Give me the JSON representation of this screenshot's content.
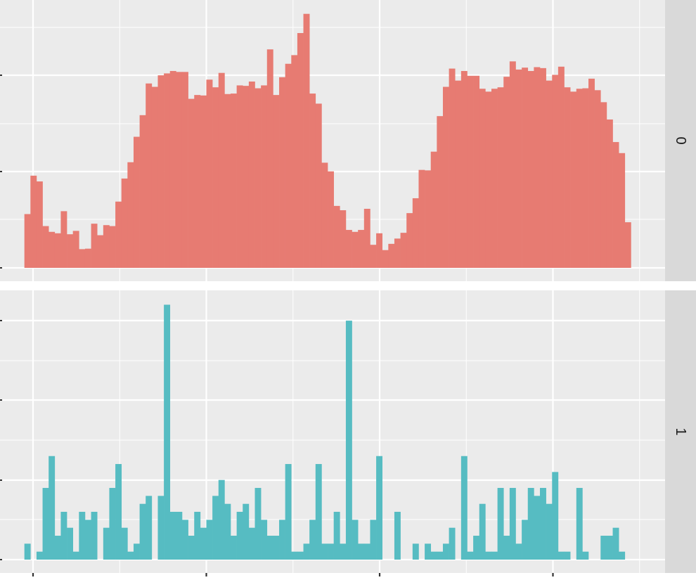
{
  "chart_data": {
    "type": "histogram-facets",
    "x_range": [
      -0.5,
      34.5
    ],
    "bin_count": 100,
    "grid": true,
    "colors": {
      "panel_bg": "#ebebeb",
      "grid": "#ffffff",
      "strip_bg": "#d9d9d9",
      "strip_text": "#1a1a1a",
      "axis_ticks": "#333333",
      "series_0": "#e77b72",
      "series_1": "#56bcc2"
    },
    "facets": [
      {
        "label": "0",
        "ylim": [
          0,
          5.3
        ],
        "values": [
          1.12,
          1.92,
          1.8,
          0.87,
          0.75,
          0.72,
          1.18,
          0.7,
          0.77,
          0.39,
          0.4,
          0.92,
          0.68,
          0.89,
          0.87,
          1.38,
          1.86,
          2.2,
          2.73,
          3.18,
          3.84,
          3.77,
          4.01,
          4.05,
          4.1,
          4.08,
          4.08,
          3.52,
          3.6,
          3.59,
          3.92,
          3.76,
          4.06,
          3.62,
          3.63,
          3.8,
          3.79,
          3.88,
          3.74,
          3.8,
          4.55,
          3.6,
          3.97,
          4.25,
          4.43,
          4.89,
          5.29,
          3.63,
          3.42,
          2.19,
          2.01,
          1.29,
          1.2,
          0.79,
          0.75,
          0.79,
          1.23,
          0.48,
          0.72,
          0.37,
          0.5,
          0.61,
          0.73,
          1.14,
          1.45,
          2.04,
          2.03,
          2.42,
          3.16,
          3.77,
          4.15,
          3.9,
          4.1,
          4,
          4,
          3.73,
          3.67,
          3.73,
          3.76,
          3.98,
          4.3,
          4.13,
          4.17,
          4.1,
          4.18,
          4.16,
          3.9,
          4.02,
          4.19,
          3.76,
          3.67,
          3.73,
          3.74,
          3.94,
          3.7,
          3.45,
          3.09,
          2.62,
          2.39,
          0.95
        ]
      },
      {
        "label": "1",
        "ylim": [
          0,
          6.4
        ],
        "values": [
          0.4,
          0,
          0.2,
          1.8,
          2.6,
          0.6,
          1.2,
          0.8,
          0.2,
          1.2,
          1,
          1.2,
          0,
          0.8,
          1.8,
          2.4,
          0.8,
          0.2,
          0.4,
          1.4,
          1.6,
          0,
          1.6,
          6.4,
          1.2,
          1.2,
          1,
          0.6,
          1.2,
          0.8,
          1,
          1.6,
          2,
          1.4,
          0.6,
          1.2,
          1.4,
          0.8,
          1.8,
          1,
          0.6,
          0.6,
          1,
          2.4,
          0.2,
          0.2,
          0.4,
          1,
          2.4,
          0.4,
          0.4,
          1.2,
          0.4,
          6,
          1,
          0.4,
          0.4,
          1,
          2.6,
          0,
          0,
          1.2,
          0,
          0,
          0.4,
          0,
          0.4,
          0.2,
          0.2,
          0.4,
          0.8,
          0,
          2.6,
          0.2,
          0.6,
          1.4,
          0.2,
          0.2,
          1.8,
          0.6,
          1.8,
          0.4,
          1,
          1.8,
          1.6,
          1.8,
          1.4,
          2.2,
          0.2,
          0.2,
          0,
          1.8,
          0.2,
          0,
          0,
          0.6,
          0.6,
          0.8,
          0.2,
          0
        ]
      }
    ]
  }
}
